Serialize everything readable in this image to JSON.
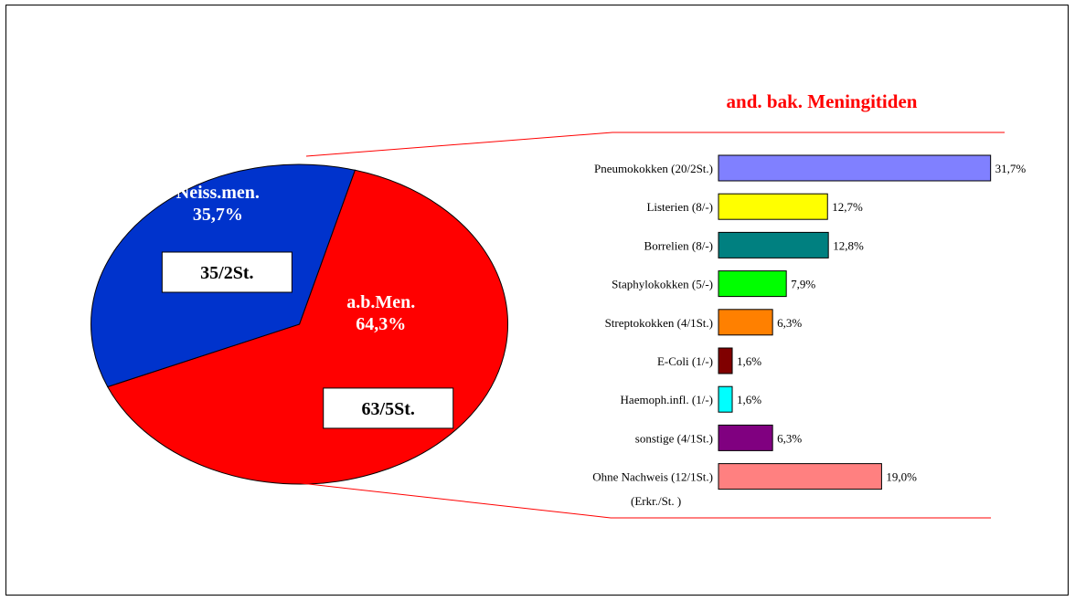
{
  "chart_data": [
    {
      "type": "pie",
      "slices": [
        {
          "name": "a.b.Men.",
          "percent_label": "64,3%",
          "count_label": "63/5St.",
          "value": 64.3,
          "color": "#ff0000",
          "exploded": true
        },
        {
          "name": "Neiss.men.",
          "percent_label": "35,7%",
          "count_label": "35/2St.",
          "value": 35.7,
          "color": "#0033cc",
          "exploded": false
        }
      ]
    },
    {
      "type": "bar",
      "orientation": "horizontal",
      "title": "and. bak. Meningitiden",
      "categories": [
        "Pneumokokken (20/2St.)",
        "Listerien (8/-)",
        "Borrelien (8/-)",
        "Staphylokokken (5/-)",
        "Streptokokken (4/1St.)",
        "E-Coli (1/-)",
        "Haemoph.infl. (1/-)",
        "sonstige (4/1St.)",
        "Ohne Nachweis (12/1St.)"
      ],
      "values": [
        31.7,
        12.7,
        12.8,
        7.9,
        6.3,
        1.6,
        1.6,
        6.3,
        19.0
      ],
      "value_labels": [
        "31,7%",
        "12,7%",
        "12,8%",
        "7,9%",
        "6,3%",
        "1,6%",
        "1,6%",
        "6,3%",
        "19,0%"
      ],
      "colors": [
        "#8080ff",
        "#ffff00",
        "#008080",
        "#00ff00",
        "#ff8000",
        "#800000",
        "#00ffff",
        "#800080",
        "#ff8080"
      ],
      "note": "(Erkr./St. )"
    }
  ]
}
